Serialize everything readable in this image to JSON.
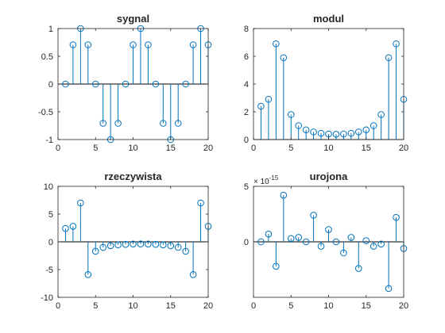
{
  "chart_data": [
    {
      "type": "stem",
      "title": "sygnal",
      "x": [
        1,
        2,
        3,
        4,
        5,
        6,
        7,
        8,
        9,
        10,
        11,
        12,
        13,
        14,
        15,
        16,
        17,
        18,
        19,
        20
      ],
      "values": [
        0,
        0.707,
        1,
        0.707,
        0,
        -0.707,
        -1,
        -0.707,
        0,
        0.707,
        1,
        0.707,
        0,
        -0.707,
        -1,
        -0.707,
        0,
        0.707,
        1,
        0.707
      ],
      "xlim": [
        0,
        20
      ],
      "ylim": [
        -1,
        1
      ],
      "xticks": [
        0,
        5,
        10,
        15,
        20
      ],
      "yticks": [
        -1,
        -0.5,
        0,
        0.5,
        1
      ],
      "xtick_labels": [
        "0",
        "5",
        "10",
        "15",
        "20"
      ],
      "ytick_labels": [
        "-1",
        "-0.5",
        "0",
        "0.5",
        "1"
      ],
      "exponent_label": ""
    },
    {
      "type": "stem",
      "title": "modul",
      "x": [
        1,
        2,
        3,
        4,
        5,
        6,
        7,
        8,
        9,
        10,
        11,
        12,
        13,
        14,
        15,
        16,
        17,
        18,
        19,
        20
      ],
      "values": [
        2.4,
        2.9,
        6.9,
        5.9,
        1.8,
        1.0,
        0.7,
        0.55,
        0.45,
        0.4,
        0.38,
        0.4,
        0.45,
        0.55,
        0.7,
        1.0,
        1.8,
        5.9,
        6.9,
        2.9
      ],
      "xlim": [
        0,
        20
      ],
      "ylim": [
        0,
        8
      ],
      "xticks": [
        0,
        5,
        10,
        15,
        20
      ],
      "yticks": [
        0,
        2,
        4,
        6,
        8
      ],
      "xtick_labels": [
        "0",
        "5",
        "10",
        "15",
        "20"
      ],
      "ytick_labels": [
        "0",
        "2",
        "4",
        "6",
        "8"
      ],
      "exponent_label": ""
    },
    {
      "type": "stem",
      "title": "rzeczywista",
      "x": [
        1,
        2,
        3,
        4,
        5,
        6,
        7,
        8,
        9,
        10,
        11,
        12,
        13,
        14,
        15,
        16,
        17,
        18,
        19,
        20
      ],
      "values": [
        2.4,
        2.8,
        7.0,
        -5.9,
        -1.7,
        -1.0,
        -0.7,
        -0.55,
        -0.45,
        -0.4,
        -0.38,
        -0.4,
        -0.45,
        -0.55,
        -0.7,
        -1.0,
        -1.7,
        -5.9,
        7.0,
        2.8
      ],
      "xlim": [
        0,
        20
      ],
      "ylim": [
        -10,
        10
      ],
      "xticks": [
        0,
        5,
        10,
        15,
        20
      ],
      "yticks": [
        -10,
        -5,
        0,
        5,
        10
      ],
      "xtick_labels": [
        "0",
        "5",
        "10",
        "15",
        "20"
      ],
      "ytick_labels": [
        "-10",
        "-5",
        "0",
        "5",
        "10"
      ],
      "exponent_label": ""
    },
    {
      "type": "stem",
      "title": "urojona",
      "x": [
        1,
        2,
        3,
        4,
        5,
        6,
        7,
        8,
        9,
        10,
        11,
        12,
        13,
        14,
        15,
        16,
        17,
        18,
        19,
        20
      ],
      "values": [
        0,
        0.7,
        -2.2,
        4.2,
        0.3,
        0.4,
        0,
        2.4,
        -0.4,
        1.1,
        0,
        -1.0,
        0.4,
        -2.4,
        0.1,
        -0.4,
        -0.2,
        -4.2,
        2.2,
        -0.6
      ],
      "xlim": [
        0,
        20
      ],
      "ylim": [
        -5,
        5
      ],
      "xticks": [
        0,
        5,
        10,
        15,
        20
      ],
      "yticks": [
        0,
        5
      ],
      "xtick_labels": [
        "0",
        "5",
        "10",
        "15",
        "20"
      ],
      "ytick_labels": [
        "0",
        "5"
      ],
      "exponent_label": "× 10",
      "exponent_power": "-15"
    }
  ],
  "colors": {
    "stem": "#0072bd",
    "axis": "#262626",
    "baseline": "#000000",
    "background": "#ffffff"
  }
}
